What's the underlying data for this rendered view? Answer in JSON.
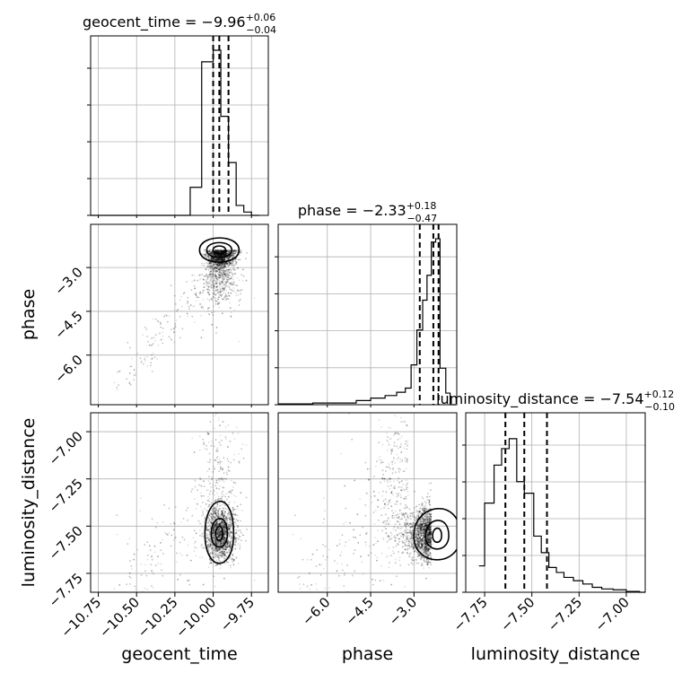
{
  "chart_data": {
    "type": "corner",
    "parameters": [
      "geocent_time",
      "phase",
      "luminosity_distance"
    ],
    "axis_labels": [
      "geocent_time",
      "phase",
      "luminosity_distance"
    ],
    "titles": [
      {
        "name": "geocent_time",
        "median": "−9.96",
        "plus": "+0.06",
        "minus": "−0.04"
      },
      {
        "name": "phase",
        "median": "−2.33",
        "plus": "+0.18",
        "minus": "−0.47"
      },
      {
        "name": "luminosity_distance",
        "median": "−7.54",
        "plus": "+0.12",
        "minus": "−0.10"
      }
    ],
    "ranges": {
      "geocent_time": [
        -10.8,
        -9.64
      ],
      "phase": [
        -7.7,
        -1.52
      ],
      "luminosity_distance": [
        -7.85,
        -6.9
      ]
    },
    "ticks": {
      "geocent_time": [
        -10.75,
        -10.5,
        -10.25,
        -10.0,
        -9.75
      ],
      "phase": [
        -6.0,
        -4.5,
        -3.0
      ],
      "luminosity_distance": [
        -7.75,
        -7.5,
        -7.25,
        -7.0
      ]
    },
    "tick_labels": {
      "geocent_time": [
        "−10.75",
        "−10.50",
        "−10.25",
        "−10.00",
        "−9.75"
      ],
      "phase": [
        "−6.0",
        "−4.5",
        "−3.0"
      ],
      "luminosity_distance": [
        "−7.75",
        "−7.50",
        "−7.25",
        "−7.00"
      ]
    },
    "quantiles": {
      "geocent_time": [
        -10.0,
        -9.96,
        -9.9
      ],
      "phase": [
        -2.8,
        -2.33,
        -2.15
      ],
      "luminosity_distance": [
        -7.64,
        -7.54,
        -7.42
      ]
    },
    "histograms": {
      "geocent_time": {
        "edges": [
          -10.8,
          -10.15,
          -10.075,
          -10.0,
          -9.95,
          -9.9,
          -9.85,
          -9.8,
          -9.75,
          -9.7
        ],
        "counts": [
          0,
          0.17,
          0.93,
          1.0,
          0.6,
          0.32,
          0.06,
          0.02,
          0
        ]
      },
      "phase": {
        "edges": [
          -7.7,
          -6.5,
          -5.0,
          -4.5,
          -4.0,
          -3.6,
          -3.3,
          -3.1,
          -2.9,
          -2.7,
          -2.55,
          -2.4,
          -2.25,
          -2.1,
          -1.9,
          -1.75,
          -1.55
        ],
        "counts": [
          0.005,
          0.01,
          0.025,
          0.04,
          0.055,
          0.075,
          0.1,
          0.24,
          0.45,
          0.63,
          0.78,
          0.98,
          1.0,
          0.22,
          0.07,
          0.0
        ]
      },
      "luminosity_distance": {
        "edges": [
          -7.78,
          -7.75,
          -7.7,
          -7.66,
          -7.62,
          -7.58,
          -7.54,
          -7.49,
          -7.45,
          -7.41,
          -7.37,
          -7.33,
          -7.28,
          -7.23,
          -7.18,
          -7.13,
          -7.07,
          -7.0,
          -6.93,
          -6.9
        ],
        "counts": [
          0.16,
          0.54,
          0.77,
          0.87,
          0.93,
          0.67,
          0.6,
          0.34,
          0.24,
          0.15,
          0.12,
          0.09,
          0.07,
          0.05,
          0.03,
          0.02,
          0.015,
          0.005,
          0
        ]
      }
    },
    "contour_levels": 3,
    "grid": true
  }
}
